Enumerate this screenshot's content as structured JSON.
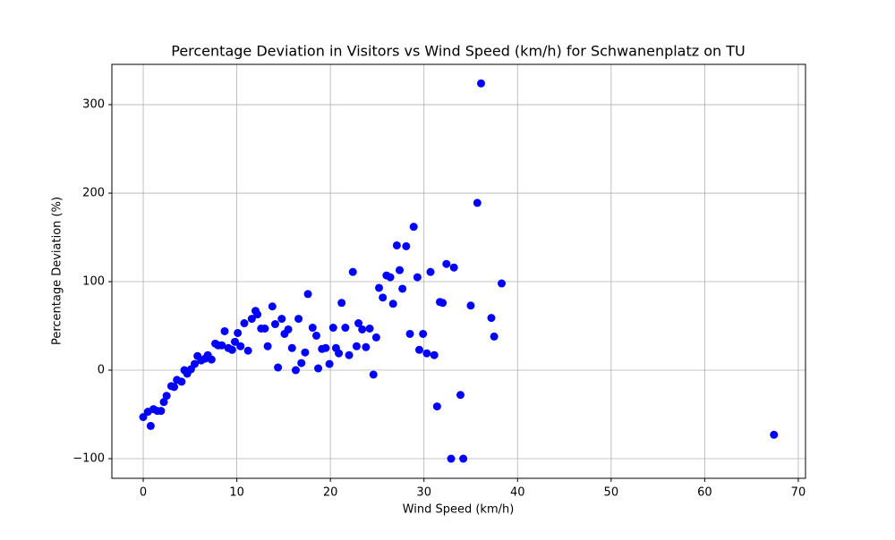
{
  "chart_data": {
    "type": "scatter",
    "title": "Percentage Deviation in Visitors vs Wind Speed (km/h) for Schwanenplatz on TU",
    "x_label": "Wind Speed (km/h)",
    "y_label": "Percentage Deviation (%)",
    "color": "#0000ff",
    "grid": true,
    "xlim": [
      -3.35,
      70.77
    ],
    "ylim": [
      -122.2,
      345.5
    ],
    "xticks": [
      0,
      10,
      20,
      30,
      40,
      50,
      60,
      70
    ],
    "yticks": [
      {
        "value": -100,
        "label": "−100"
      },
      0,
      100,
      200,
      300
    ],
    "x": [
      0,
      0.5,
      0.8,
      1.1,
      1.5,
      1.9,
      2.2,
      2.5,
      3.0,
      3.3,
      3.6,
      4.1,
      4.4,
      4.7,
      5.1,
      5.5,
      5.8,
      6.2,
      6.6,
      6.9,
      7.3,
      7.7,
      8.0,
      8.4,
      8.7,
      9.1,
      9.5,
      9.8,
      10.1,
      10.4,
      10.8,
      11.2,
      11.6,
      12.0,
      12.2,
      12.6,
      13.0,
      13.3,
      13.8,
      14.1,
      14.4,
      14.8,
      15.1,
      15.5,
      15.9,
      16.3,
      16.6,
      16.9,
      17.3,
      17.6,
      18.1,
      18.5,
      18.7,
      19.1,
      19.5,
      19.9,
      20.3,
      20.6,
      20.9,
      21.2,
      21.6,
      22.0,
      22.4,
      22.8,
      23.0,
      23.4,
      23.8,
      24.2,
      24.6,
      24.9,
      25.2,
      25.6,
      26.0,
      26.4,
      26.7,
      27.1,
      27.4,
      27.7,
      28.1,
      28.5,
      28.9,
      29.3,
      29.5,
      29.9,
      30.3,
      30.7,
      31.1,
      31.4,
      31.7,
      32.0,
      32.4,
      32.9,
      33.2,
      33.9,
      34.2,
      35.0,
      35.7,
      36.1,
      37.2,
      37.5,
      38.3,
      67.4
    ],
    "values": [
      -53,
      -47,
      -63,
      -44,
      -46,
      -46,
      -36,
      -29,
      -18,
      -19,
      -11,
      -13,
      0,
      -4,
      1,
      7,
      16,
      11,
      13,
      17,
      12,
      30,
      28,
      28,
      44,
      25,
      23,
      32,
      42,
      27,
      53,
      22,
      58,
      67,
      63,
      47,
      47,
      27,
      72,
      52,
      3,
      58,
      41,
      46,
      25,
      0,
      58,
      8,
      20,
      86,
      48,
      39,
      2,
      24,
      25,
      7,
      48,
      25,
      19,
      76,
      48,
      17,
      111,
      27,
      53,
      46,
      26,
      47,
      -5,
      37,
      93,
      82,
      107,
      105,
      75,
      141,
      113,
      92,
      140,
      41,
      162,
      105,
      23,
      41,
      19,
      111,
      17,
      -41,
      77,
      76,
      120,
      -100,
      116,
      -28,
      -100,
      73,
      189,
      324,
      59,
      38,
      98,
      -73
    ]
  }
}
